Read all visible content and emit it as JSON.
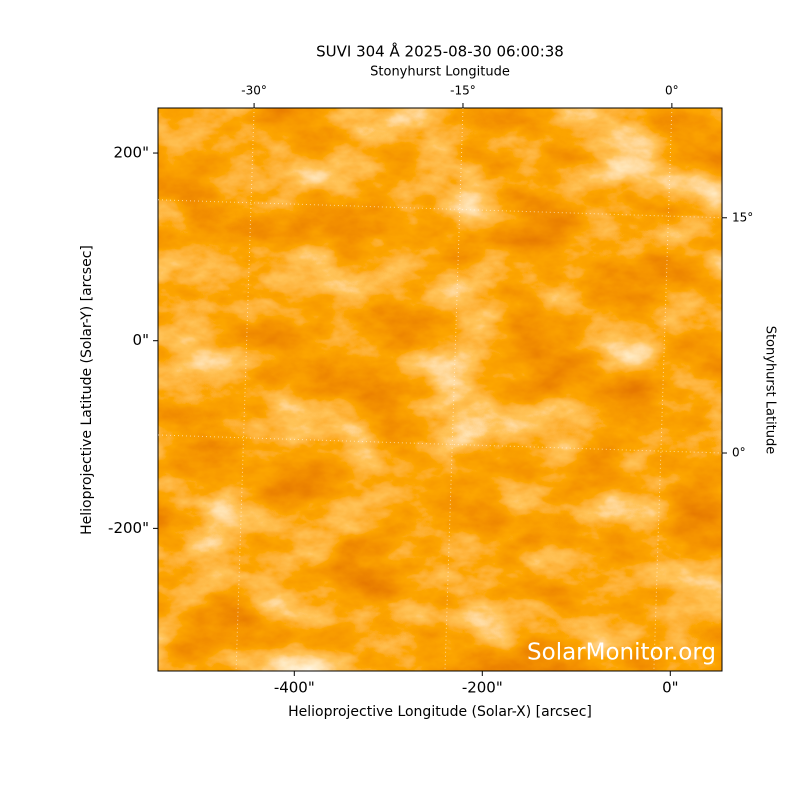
{
  "chart_data": {
    "type": "image",
    "title": "SUVI 304 Å 2025-08-30 06:00:38",
    "xlabel": "Helioprojective Longitude (Solar-X) [arcsec]",
    "ylabel": "Helioprojective Latitude (Solar-Y) [arcsec]",
    "x2label": "Stonyhurst Longitude",
    "y2label": "Stonyhurst Latitude",
    "watermark": "SolarMonitor.org",
    "xlim": [
      -545,
      55
    ],
    "ylim": [
      -352,
      248
    ],
    "xticks": [
      {
        "value": -400,
        "label": "-400\""
      },
      {
        "value": -200,
        "label": "-200\""
      },
      {
        "value": 0,
        "label": "0\""
      }
    ],
    "yticks": [
      {
        "value": -200,
        "label": "-200\""
      },
      {
        "value": 0,
        "label": "0\""
      },
      {
        "value": 200,
        "label": "200\""
      }
    ],
    "x2lim": [
      -36.9,
      3.6
    ],
    "x2ticks": [
      {
        "value": -30,
        "label": "-30°"
      },
      {
        "value": -15,
        "label": "-15°"
      },
      {
        "value": 0,
        "label": "0°"
      }
    ],
    "y2lim": [
      -13.9,
      22
    ],
    "y2ticks": [
      {
        "value": 0,
        "label": "0°"
      },
      {
        "value": 15,
        "label": "15°"
      }
    ],
    "grid": true
  }
}
